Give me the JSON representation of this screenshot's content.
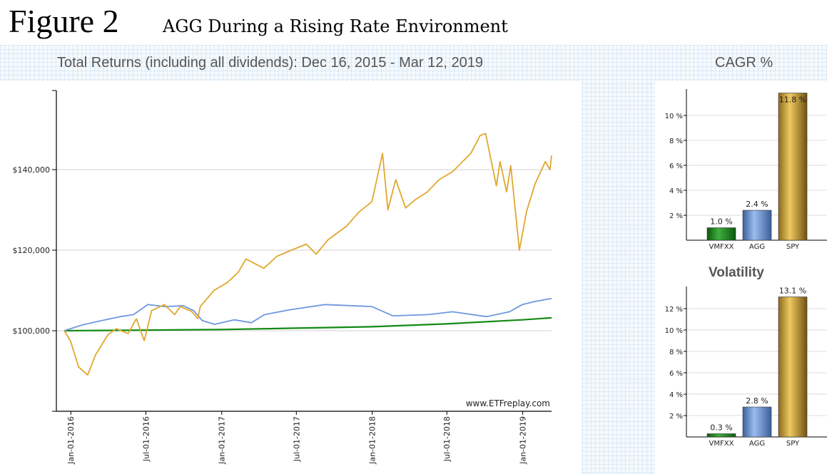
{
  "figure": {
    "label": "Figure 2",
    "title": "AGG During a Rising Rate Environment"
  },
  "colors": {
    "spy": "#e0a82e",
    "agg": "#6f98e0",
    "vmfxx": "#138a13",
    "grid_bg": "#f6fafd"
  },
  "main_chart": {
    "header": "Total Returns (including all dividends): Dec 16, 2015 - Mar 12, 2019",
    "watermark": "www.ETFreplay.com",
    "y_tick_labels": [
      "$100,000",
      "$120,000",
      "$140,000"
    ]
  },
  "cagr_header": "CAGR %",
  "volatility_title": "Volatility",
  "chart_data": [
    {
      "type": "line",
      "title": "Total Returns (including all dividends): Dec 16, 2015 - Mar 12, 2019",
      "xlabel": "",
      "ylabel": "",
      "x_start": "2015-12-16",
      "x_end": "2019-03-12",
      "x_ticks": [
        "Jan-01-2016",
        "Jul-01-2016",
        "Jan-01-2017",
        "Jul-01-2017",
        "Jan-01-2018",
        "Jul-01-2018",
        "Jan-01-2019"
      ],
      "y_ticks": [
        100000,
        120000,
        140000
      ],
      "ylim": [
        80000,
        160000
      ],
      "grid": true,
      "series": [
        {
          "name": "SPY",
          "points": [
            [
              "2015-12-16",
              100000
            ],
            [
              "2015-12-31",
              97500
            ],
            [
              "2016-01-20",
              91000
            ],
            [
              "2016-02-11",
              89000
            ],
            [
              "2016-03-01",
              94000
            ],
            [
              "2016-03-31",
              99000
            ],
            [
              "2016-04-20",
              100500
            ],
            [
              "2016-05-19",
              99300
            ],
            [
              "2016-06-08",
              103000
            ],
            [
              "2016-06-27",
              97500
            ],
            [
              "2016-07-15",
              105000
            ],
            [
              "2016-08-15",
              106500
            ],
            [
              "2016-09-09",
              104000
            ],
            [
              "2016-09-22",
              106000
            ],
            [
              "2016-10-20",
              104800
            ],
            [
              "2016-11-04",
              103000
            ],
            [
              "2016-11-10",
              106000
            ],
            [
              "2016-12-13",
              110000
            ],
            [
              "2017-01-15",
              112000
            ],
            [
              "2017-02-10",
              114500
            ],
            [
              "2017-03-01",
              117800
            ],
            [
              "2017-04-13",
              115500
            ],
            [
              "2017-05-15",
              118500
            ],
            [
              "2017-06-19",
              120000
            ],
            [
              "2017-07-25",
              121500
            ],
            [
              "2017-08-18",
              119000
            ],
            [
              "2017-09-15",
              122500
            ],
            [
              "2017-10-31",
              126000
            ],
            [
              "2017-11-30",
              129500
            ],
            [
              "2017-12-31",
              132000
            ],
            [
              "2018-01-26",
              144000
            ],
            [
              "2018-02-08",
              130000
            ],
            [
              "2018-02-27",
              137500
            ],
            [
              "2018-03-23",
              130500
            ],
            [
              "2018-04-15",
              132500
            ],
            [
              "2018-05-15",
              134500
            ],
            [
              "2018-06-12",
              137500
            ],
            [
              "2018-07-15",
              139500
            ],
            [
              "2018-08-28",
              144000
            ],
            [
              "2018-09-20",
              148500
            ],
            [
              "2018-10-03",
              149000
            ],
            [
              "2018-10-29",
              136000
            ],
            [
              "2018-11-07",
              142000
            ],
            [
              "2018-11-23",
              134500
            ],
            [
              "2018-12-03",
              141000
            ],
            [
              "2018-12-24",
              120000
            ],
            [
              "2019-01-10",
              129500
            ],
            [
              "2019-01-31",
              136500
            ],
            [
              "2019-02-25",
              142000
            ],
            [
              "2019-03-08",
              140000
            ],
            [
              "2019-03-12",
              143500
            ]
          ]
        },
        {
          "name": "AGG",
          "points": [
            [
              "2015-12-16",
              100000
            ],
            [
              "2016-01-31",
              101500
            ],
            [
              "2016-03-15",
              102500
            ],
            [
              "2016-04-30",
              103500
            ],
            [
              "2016-06-01",
              104000
            ],
            [
              "2016-07-06",
              106500
            ],
            [
              "2016-08-15",
              106000
            ],
            [
              "2016-09-30",
              106200
            ],
            [
              "2016-10-25",
              105000
            ],
            [
              "2016-11-15",
              102500
            ],
            [
              "2016-12-15",
              101600
            ],
            [
              "2017-01-31",
              102700
            ],
            [
              "2017-03-14",
              102000
            ],
            [
              "2017-04-15",
              104000
            ],
            [
              "2017-06-15",
              105200
            ],
            [
              "2017-09-08",
              106500
            ],
            [
              "2017-12-31",
              106000
            ],
            [
              "2018-02-20",
              103700
            ],
            [
              "2018-05-17",
              104000
            ],
            [
              "2018-07-15",
              104700
            ],
            [
              "2018-10-05",
              103500
            ],
            [
              "2018-11-30",
              104700
            ],
            [
              "2018-12-31",
              106500
            ],
            [
              "2019-02-01",
              107300
            ],
            [
              "2019-03-12",
              108000
            ]
          ]
        },
        {
          "name": "VMFXX",
          "points": [
            [
              "2015-12-16",
              100000
            ],
            [
              "2016-12-31",
              100300
            ],
            [
              "2017-12-31",
              101000
            ],
            [
              "2018-06-30",
              101700
            ],
            [
              "2018-12-31",
              102700
            ],
            [
              "2019-03-12",
              103200
            ]
          ]
        }
      ]
    },
    {
      "type": "bar",
      "title": "CAGR %",
      "categories": [
        "VMFXX",
        "AGG",
        "SPY"
      ],
      "values": [
        1.0,
        2.4,
        11.8
      ],
      "value_labels": [
        "1.0 %",
        "2.4 %",
        "11.8 %"
      ],
      "y_ticks": [
        2,
        4,
        6,
        8,
        10
      ],
      "y_tick_labels": [
        "2 %",
        "4 %",
        "6 %",
        "8 %",
        "10 %"
      ],
      "ylim": [
        0,
        12
      ],
      "grid": true
    },
    {
      "type": "bar",
      "title": "Volatility",
      "categories": [
        "VMFXX",
        "AGG",
        "SPY"
      ],
      "values": [
        0.3,
        2.8,
        13.1
      ],
      "value_labels": [
        "0.3 %",
        "2.8 %",
        "13.1 %"
      ],
      "y_ticks": [
        2,
        4,
        6,
        8,
        10,
        12
      ],
      "y_tick_labels": [
        "2 %",
        "4 %",
        "6 %",
        "8 %",
        "10 %",
        "12 %"
      ],
      "ylim": [
        0,
        14
      ],
      "grid": true
    }
  ]
}
